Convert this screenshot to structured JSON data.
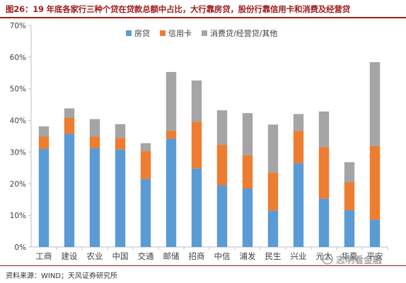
{
  "figure": {
    "title": "图26：19 年底各家行三种个贷在贷款总额中占比，大行靠房贷，股份行靠信用卡和消费及经营贷",
    "source": "资料来源：WIND；天风证券研究所",
    "watermark": "志明看金融"
  },
  "colors": {
    "mortgage": "#5b9bd5",
    "credit_card": "#ed7d31",
    "consumer_business_other": "#a5a5a5",
    "axis": "#bfbfbf",
    "text": "#404040",
    "title": "#9e1b1b"
  },
  "chart_data": {
    "type": "bar",
    "stacked": true,
    "title": "",
    "xlabel": "",
    "ylabel": "",
    "ylim": [
      0,
      70
    ],
    "yticks": [
      0,
      10,
      20,
      30,
      40,
      50,
      60,
      70
    ],
    "ytick_labels": [
      "0%",
      "10%",
      "20%",
      "30%",
      "40%",
      "50%",
      "60%",
      "70%"
    ],
    "y_unit": "%",
    "grid": false,
    "legend_position": "top-right",
    "categories": [
      "工商",
      "建设",
      "农业",
      "中国",
      "交通",
      "邮储",
      "招商",
      "中信",
      "浦发",
      "民生",
      "兴业",
      "光大",
      "华夏",
      "平安"
    ],
    "series": [
      {
        "name": "房贷",
        "color_key": "mortgage",
        "values": [
          31,
          35.8,
          31.2,
          30.8,
          21.5,
          34.2,
          24.8,
          19.5,
          18.5,
          11.5,
          26.5,
          15.3,
          11.6,
          8.6
        ]
      },
      {
        "name": "信用卡",
        "color_key": "credit_card",
        "values": [
          3.9,
          5.0,
          3.7,
          3.7,
          8.8,
          2.5,
          14.8,
          12.8,
          10.5,
          12.0,
          10.2,
          16.3,
          8.9,
          23.3
        ]
      },
      {
        "name": "消费贷/经营贷/其他",
        "color_key": "consumer_business_other",
        "values": [
          3.2,
          3.0,
          5.5,
          4.3,
          2.5,
          18.6,
          13.0,
          10.9,
          13.3,
          15.2,
          5.3,
          11.2,
          6.3,
          26.5
        ]
      }
    ]
  }
}
